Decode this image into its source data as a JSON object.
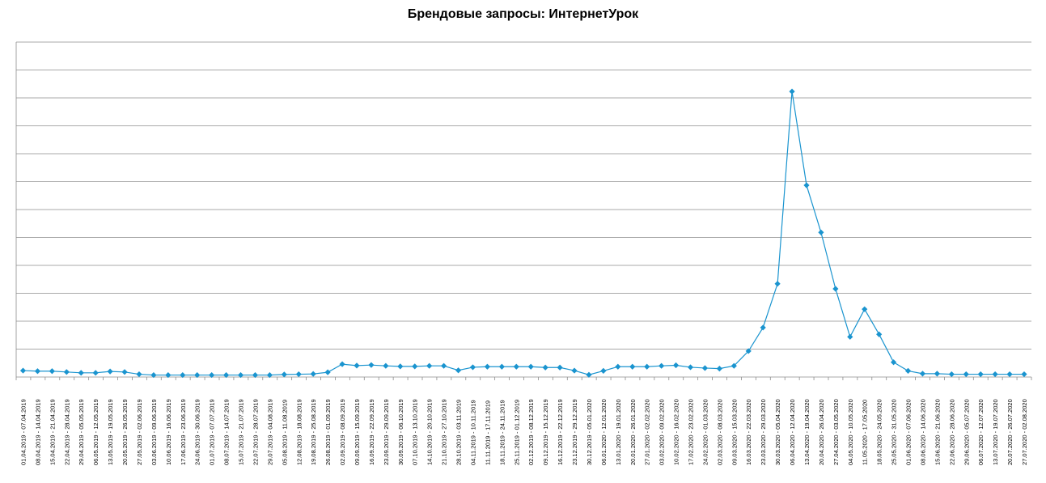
{
  "chart_data": {
    "type": "line",
    "title": "Брендовые запросы: ИнтернетУрок",
    "xlabel": "",
    "ylabel": "",
    "ylim": [
      0,
      12
    ],
    "grid": true,
    "legend": "none",
    "line_color": "#1a94cf",
    "marker": "diamond",
    "categories": [
      "01.04.2019 - 07.04.2019",
      "08.04.2019 - 14.04.2019",
      "15.04.2019 - 21.04.2019",
      "22.04.2019 - 28.04.2019",
      "29.04.2019 - 05.05.2019",
      "06.05.2019 - 12.05.2019",
      "13.05.2019 - 19.05.2019",
      "20.05.2019 - 26.05.2019",
      "27.05.2019 - 02.06.2019",
      "03.06.2019 - 09.06.2019",
      "10.06.2019 - 16.06.2019",
      "17.06.2019 - 23.06.2019",
      "24.06.2019 - 30.06.2019",
      "01.07.2019 - 07.07.2019",
      "08.07.2019 - 14.07.2019",
      "15.07.2019 - 21.07.2019",
      "22.07.2019 - 28.07.2019",
      "29.07.2019 - 04.08.2019",
      "05.08.2019 - 11.08.2019",
      "12.08.2019 - 18.08.2019",
      "19.08.2019 - 25.08.2019",
      "26.08.2019 - 01.09.2019",
      "02.09.2019 - 08.09.2019",
      "09.09.2019 - 15.09.2019",
      "16.09.2019 - 22.09.2019",
      "23.09.2019 - 29.09.2019",
      "30.09.2019 - 06.10.2019",
      "07.10.2019 - 13.10.2019",
      "14.10.2019 - 20.10.2019",
      "21.10.2019 - 27.10.2019",
      "28.10.2019 - 03.11.2019",
      "04.11.2019 - 10.11.2019",
      "11.11.2019 - 17.11.2019",
      "18.11.2019 - 24.11.2019",
      "25.11.2019 - 01.12.2019",
      "02.12.2019 - 08.12.2019",
      "09.12.2019 - 15.12.2019",
      "16.12.2019 - 22.12.2019",
      "23.12.2019 - 29.12.2019",
      "30.12.2019 - 05.01.2020",
      "06.01.2020 - 12.01.2020",
      "13.01.2020 - 19.01.2020",
      "20.01.2020 - 26.01.2020",
      "27.01.2020 - 02.02.2020",
      "03.02.2020 - 09.02.2020",
      "10.02.2020 - 16.02.2020",
      "17.02.2020 - 23.02.2020",
      "24.02.2020 - 01.03.2020",
      "02.03.2020 - 08.03.2020",
      "09.03.2020 - 15.03.2020",
      "16.03.2020 - 22.03.2020",
      "23.03.2020 - 29.03.2020",
      "30.03.2020 - 05.04.2020",
      "06.04.2020 - 12.04.2020",
      "13.04.2020 - 19.04.2020",
      "20.04.2020 - 26.04.2020",
      "27.04.2020 - 03.05.2020",
      "04.05.2020 - 10.05.2020",
      "11.05.2020 - 17.05.2020",
      "18.05.2020 - 24.05.2020",
      "25.05.2020 - 31.05.2020",
      "01.06.2020 - 07.06.2020",
      "08.06.2020 - 14.06.2020",
      "15.06.2020 - 21.06.2020",
      "22.06.2020 - 28.06.2020",
      "29.06.2020 - 05.07.2020",
      "06.07.2020 - 12.07.2020",
      "13.07.2020 - 19.07.2020",
      "20.07.2020 - 26.07.2020",
      "27.07.2020 - 02.08.2020"
    ],
    "values": [
      0.23,
      0.21,
      0.21,
      0.18,
      0.15,
      0.15,
      0.2,
      0.18,
      0.1,
      0.07,
      0.07,
      0.07,
      0.07,
      0.07,
      0.07,
      0.07,
      0.07,
      0.07,
      0.09,
      0.1,
      0.11,
      0.17,
      0.46,
      0.41,
      0.43,
      0.4,
      0.38,
      0.38,
      0.4,
      0.4,
      0.24,
      0.35,
      0.37,
      0.37,
      0.37,
      0.37,
      0.34,
      0.34,
      0.23,
      0.08,
      0.22,
      0.37,
      0.37,
      0.37,
      0.4,
      0.42,
      0.35,
      0.32,
      0.3,
      0.4,
      0.93,
      1.77,
      3.34,
      10.23,
      6.87,
      5.18,
      3.16,
      1.44,
      2.43,
      1.53,
      0.53,
      0.22,
      0.12,
      0.12,
      0.1,
      0.1,
      0.1,
      0.1,
      0.1,
      0.1
    ]
  }
}
